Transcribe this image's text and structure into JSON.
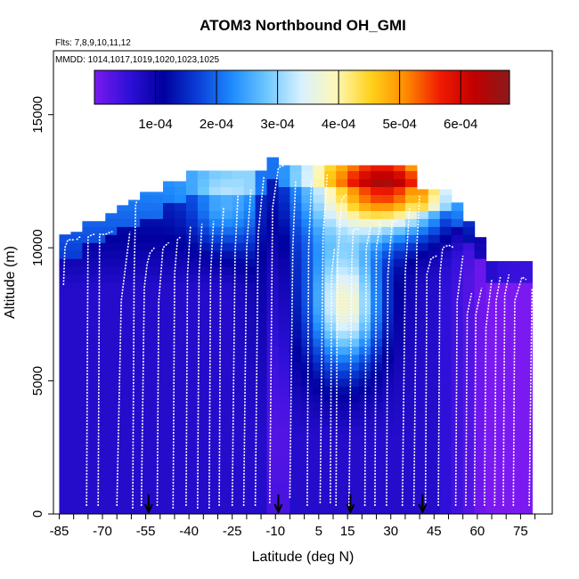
{
  "chart_data": {
    "type": "heatmap",
    "title": "ATOM3 Northbound OH_GMI",
    "subtitle_flights": "Flts: 7,8,9,10,11,12",
    "subtitle_dates": "MMDD: 1014,1017,1019,1020,1023,1025",
    "xlabel": "Latitude (deg N)",
    "ylabel": "Altitude (m)",
    "xlim": [
      -87,
      86
    ],
    "ylim": [
      0,
      17400
    ],
    "x_ticks": [
      -85,
      -70,
      -55,
      -40,
      -25,
      -10,
      5,
      15,
      30,
      45,
      60,
      75
    ],
    "x_tick_labels": [
      "-85",
      "-70",
      "-55",
      "-40",
      "-25",
      "-10",
      "5",
      "15",
      "30",
      "45",
      "60",
      "75"
    ],
    "y_ticks": [
      0,
      5000,
      10000,
      15000
    ],
    "y_tick_labels": [
      "0",
      "5000",
      "10000",
      "15000"
    ],
    "colorbar": {
      "min": 0,
      "max": 0.00068,
      "ticks": [
        0.0001,
        0.0002,
        0.0003,
        0.0004,
        0.0005,
        0.0006
      ],
      "tick_labels": [
        "1e-04",
        "2e-04",
        "3e-04",
        "4e-04",
        "5e-04",
        "6e-04"
      ],
      "colors": [
        "#7a19f0",
        "#2f10d8",
        "#00009e",
        "#0a3fd8",
        "#1f8cff",
        "#6fc8ff",
        "#d9f1ff",
        "#fff7b5",
        "#ffd11a",
        "#ff8a00",
        "#f01a00",
        "#c00000",
        "#8a1a1a"
      ]
    },
    "column_tops_m": [
      [
        -83,
        10500
      ],
      [
        -79,
        10600
      ],
      [
        -75,
        11000
      ],
      [
        -71,
        11000
      ],
      [
        -67,
        11300
      ],
      [
        -63,
        11600
      ],
      [
        -59,
        11800
      ],
      [
        -55,
        12100
      ],
      [
        -51,
        12100
      ],
      [
        -47,
        12500
      ],
      [
        -43,
        12500
      ],
      [
        -39,
        12900
      ],
      [
        -35,
        12900
      ],
      [
        -31,
        12900
      ],
      [
        -27,
        12900
      ],
      [
        -23,
        12900
      ],
      [
        -19,
        12900
      ],
      [
        -15,
        12900
      ],
      [
        -11,
        13400
      ],
      [
        -7,
        13100
      ],
      [
        -3,
        13100
      ],
      [
        1,
        13100
      ],
      [
        5,
        13100
      ],
      [
        9,
        13100
      ],
      [
        13,
        13100
      ],
      [
        17,
        13100
      ],
      [
        21,
        13100
      ],
      [
        25,
        13100
      ],
      [
        29,
        13100
      ],
      [
        33,
        13100
      ],
      [
        37,
        13100
      ],
      [
        41,
        12200
      ],
      [
        45,
        12200
      ],
      [
        49,
        12200
      ],
      [
        53,
        11700
      ],
      [
        57,
        11000
      ],
      [
        61,
        10400
      ],
      [
        65,
        9500
      ],
      [
        69,
        9500
      ],
      [
        73,
        9500
      ],
      [
        77,
        9500
      ]
    ],
    "flight_profiles": [
      {
        "lats": [
          -83.5,
          -83,
          -82,
          -80.5,
          -80
        ],
        "alts": [
          8600,
          10000,
          10300,
          10300,
          10300
        ]
      },
      {
        "lats": [
          -79,
          -78,
          -77.5
        ],
        "alts": [
          10300,
          10400,
          10400
        ]
      },
      {
        "lats": [
          -75.5,
          -75,
          -73.5,
          -72.5
        ],
        "alts": [
          300,
          10400,
          10500,
          10500
        ]
      },
      {
        "lats": [
          -71.5,
          -71,
          -69,
          -67,
          -66.5
        ],
        "alts": [
          300,
          10500,
          10500,
          10600,
          10600
        ]
      },
      {
        "lats": [
          -65,
          -63.5,
          -60.5
        ],
        "alts": [
          300,
          8000,
          10600
        ]
      },
      {
        "lats": [
          -59.5,
          -59,
          -58.5,
          -58
        ],
        "alts": [
          200,
          9000,
          11600,
          11800
        ]
      },
      {
        "lats": [
          -56.5,
          -55.5,
          -54.5,
          -53.5,
          -52
        ],
        "alts": [
          300,
          8500,
          9400,
          9800,
          10000
        ]
      },
      {
        "lats": [
          -51,
          -50.5,
          -49,
          -47
        ],
        "alts": [
          300,
          8000,
          10000,
          10200
        ]
      },
      {
        "lats": [
          -45.5,
          -45,
          -44,
          -43
        ],
        "alts": [
          200,
          9000,
          10300,
          10400
        ]
      },
      {
        "lats": [
          -41,
          -40.5,
          -39.5
        ],
        "alts": [
          300,
          9000,
          10800
        ]
      },
      {
        "lats": [
          -37,
          -36.5,
          -35.5
        ],
        "alts": [
          200,
          9000,
          10900
        ]
      },
      {
        "lats": [
          -33,
          -32.5,
          -31.5
        ],
        "alts": [
          200,
          9000,
          11000
        ]
      },
      {
        "lats": [
          -29.5,
          -29,
          -28
        ],
        "alts": [
          300,
          9500,
          11500
        ]
      },
      {
        "lats": [
          -25,
          -24,
          -23
        ],
        "alts": [
          300,
          9800,
          12000
        ]
      },
      {
        "lats": [
          -21,
          -20,
          -18.5
        ],
        "alts": [
          300,
          10000,
          12200
        ]
      },
      {
        "lats": [
          -17,
          -16,
          -14
        ],
        "alts": [
          300,
          10500,
          12700
        ]
      },
      {
        "lats": [
          -12,
          -11,
          -9,
          -7
        ],
        "alts": [
          400,
          11500,
          13000,
          13100
        ]
      },
      {
        "lats": [
          -5,
          -4,
          -3
        ],
        "alts": [
          600,
          10000,
          12500
        ]
      },
      {
        "lats": [
          1,
          1.5,
          2.5
        ],
        "alts": [
          300,
          10000,
          12500
        ]
      },
      {
        "lats": [
          5.5,
          6.5,
          8
        ],
        "alts": [
          400,
          10500,
          12800
        ]
      },
      {
        "lats": [
          9,
          9.5,
          10.5
        ],
        "alts": [
          400,
          9000,
          10000
        ]
      },
      {
        "lats": [
          11,
          11.5,
          13,
          14.5
        ],
        "alts": [
          300,
          9500,
          11800,
          12000
        ]
      },
      {
        "lats": [
          15.5,
          16.5,
          17,
          19.5
        ],
        "alts": [
          300,
          9500,
          10700,
          10700
        ]
      },
      {
        "lats": [
          21,
          21.5,
          23
        ],
        "alts": [
          300,
          10000,
          10800
        ]
      },
      {
        "lats": [
          24.5,
          25,
          26.5
        ],
        "alts": [
          300,
          10000,
          11000
        ]
      },
      {
        "lats": [
          28.5,
          29,
          30.5,
          32.5
        ],
        "alts": [
          300,
          9000,
          11000,
          11000
        ]
      },
      {
        "lats": [
          34,
          35,
          36.5
        ],
        "alts": [
          300,
          9000,
          11500
        ]
      },
      {
        "lats": [
          38,
          39,
          40
        ],
        "alts": [
          300,
          10000,
          12000
        ]
      },
      {
        "lats": [
          42,
          42.5,
          44,
          46
        ],
        "alts": [
          300,
          9000,
          9600,
          9700
        ]
      },
      {
        "lats": [
          46.5,
          47,
          48,
          50,
          52
        ],
        "alts": [
          300,
          9000,
          10000,
          10100,
          10000
        ]
      },
      {
        "lats": [
          52.5,
          53,
          55
        ],
        "alts": [
          300,
          8000,
          9700
        ]
      },
      {
        "lats": [
          56,
          56.5,
          58
        ],
        "alts": [
          300,
          7500,
          8300
        ]
      },
      {
        "lats": [
          59,
          59.5,
          61.5
        ],
        "alts": [
          300,
          7500,
          8500
        ]
      },
      {
        "lats": [
          62.5,
          63,
          65
        ],
        "alts": [
          300,
          7000,
          8800
        ]
      },
      {
        "lats": [
          66,
          66.5,
          68
        ],
        "alts": [
          300,
          8000,
          8900
        ]
      },
      {
        "lats": [
          69,
          69.5,
          71
        ],
        "alts": [
          300,
          8200,
          9000
        ]
      },
      {
        "lats": [
          72.5,
          73,
          75.5,
          77
        ],
        "alts": [
          300,
          8000,
          8900,
          8800
        ]
      },
      {
        "lats": [
          78,
          79
        ],
        "alts": [
          300,
          8500
        ]
      }
    ],
    "arrow_latitudes": [
      -54,
      -9,
      16,
      41
    ]
  }
}
